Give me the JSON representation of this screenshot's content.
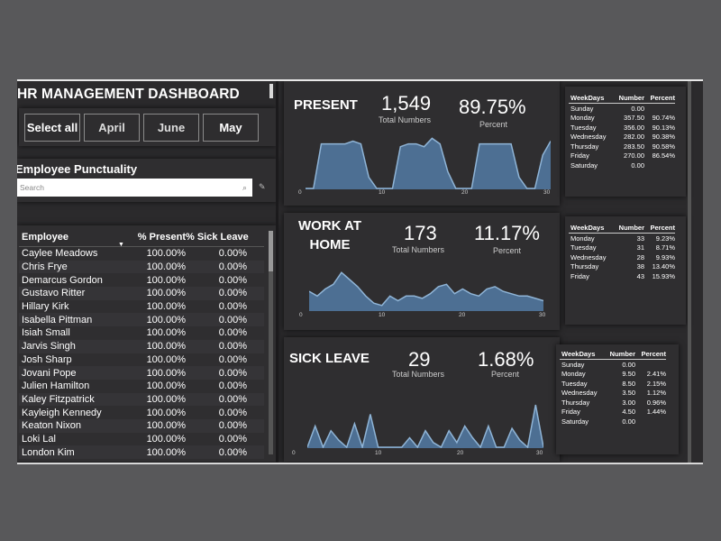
{
  "dashboard": {
    "title": "HR MANAGEMENT DASHBOARD",
    "months": [
      "Select all",
      "April",
      "June",
      "May"
    ],
    "punctuality_title": "Employee Punctuality",
    "search_placeholder": "Search",
    "table": {
      "headers": [
        "Employee",
        "% Present",
        "% Sick Leave"
      ],
      "rows": [
        [
          "Caylee Meadows",
          "100.00%",
          "0.00%"
        ],
        [
          "Chris Frye",
          "100.00%",
          "0.00%"
        ],
        [
          "Demarcus Gordon",
          "100.00%",
          "0.00%"
        ],
        [
          "Gustavo Ritter",
          "100.00%",
          "0.00%"
        ],
        [
          "Hillary Kirk",
          "100.00%",
          "0.00%"
        ],
        [
          "Isabella Pittman",
          "100.00%",
          "0.00%"
        ],
        [
          "Isiah Small",
          "100.00%",
          "0.00%"
        ],
        [
          "Jarvis Singh",
          "100.00%",
          "0.00%"
        ],
        [
          "Josh Sharp",
          "100.00%",
          "0.00%"
        ],
        [
          "Jovani Pope",
          "100.00%",
          "0.00%"
        ],
        [
          "Julien Hamilton",
          "100.00%",
          "0.00%"
        ],
        [
          "Kaley Fitzpatrick",
          "100.00%",
          "0.00%"
        ],
        [
          "Kayleigh Kennedy",
          "100.00%",
          "0.00%"
        ],
        [
          "Keaton Nixon",
          "100.00%",
          "0.00%"
        ],
        [
          "Loki Lal",
          "100.00%",
          "0.00%"
        ],
        [
          "London Kim",
          "100.00%",
          "0.00%"
        ]
      ]
    }
  },
  "sections": {
    "present": {
      "title": "PRESENT",
      "number": "1,549",
      "number_label": "Total Numbers",
      "percent": "89.75%",
      "percent_label": "Percent",
      "axis": [
        "0",
        "10",
        "20",
        "30"
      ],
      "series": [
        0,
        0,
        0.8,
        0.8,
        0.8,
        0.8,
        0.85,
        0.8,
        0.2,
        0,
        0,
        0,
        0.75,
        0.8,
        0.8,
        0.75,
        0.9,
        0.8,
        0.3,
        0,
        0,
        0,
        0.8,
        0.8,
        0.8,
        0.8,
        0.8,
        0.2,
        0,
        0,
        0.6,
        0.85
      ],
      "table": {
        "headers": [
          "WeekDays",
          "Number",
          "Percent"
        ],
        "rows": [
          [
            "Sunday",
            "0.00",
            ""
          ],
          [
            "Monday",
            "357.50",
            "90.74%"
          ],
          [
            "Tuesday",
            "356.00",
            "90.13%"
          ],
          [
            "Wednesday",
            "282.00",
            "90.38%"
          ],
          [
            "Thursday",
            "283.50",
            "90.58%"
          ],
          [
            "Friday",
            "270.00",
            "86.54%"
          ],
          [
            "Saturday",
            "0.00",
            ""
          ]
        ]
      }
    },
    "work_at_home": {
      "title_line1": "WORK AT",
      "title_line2": "HOME",
      "number": "173",
      "number_label": "Total Numbers",
      "percent": "11.17%",
      "percent_label": "Percent",
      "axis": [
        "0",
        "10",
        "20",
        "30"
      ],
      "series": [
        0.4,
        0.3,
        0.45,
        0.55,
        0.8,
        0.65,
        0.5,
        0.3,
        0.15,
        0.1,
        0.3,
        0.2,
        0.3,
        0.3,
        0.25,
        0.35,
        0.5,
        0.55,
        0.35,
        0.45,
        0.35,
        0.3,
        0.45,
        0.5,
        0.4,
        0.35,
        0.3,
        0.3,
        0.25,
        0.2
      ],
      "table": {
        "headers": [
          "WeekDays",
          "Number",
          "Percent"
        ],
        "rows": [
          [
            "Monday",
            "33",
            "9.23%"
          ],
          [
            "Tuesday",
            "31",
            "8.71%"
          ],
          [
            "Wednesday",
            "28",
            "9.93%"
          ],
          [
            "Thursday",
            "38",
            "13.40%"
          ],
          [
            "Friday",
            "43",
            "15.93%"
          ]
        ]
      }
    },
    "sick_leave": {
      "title": "SICK LEAVE",
      "number": "29",
      "number_label": "Total Numbers",
      "percent": "1.68%",
      "percent_label": "Percent",
      "axis": [
        "0",
        "10",
        "20",
        "30"
      ],
      "series": [
        0,
        0.45,
        0,
        0.35,
        0.15,
        0,
        0.5,
        0,
        0.7,
        0,
        0,
        0,
        0,
        0.2,
        0,
        0.35,
        0.1,
        0,
        0.35,
        0.1,
        0.45,
        0.2,
        0,
        0.45,
        0,
        0,
        0.4,
        0.15,
        0,
        0.9,
        0
      ],
      "table": {
        "headers": [
          "WeekDays",
          "Number",
          "Percent"
        ],
        "rows": [
          [
            "Sunday",
            "0.00",
            ""
          ],
          [
            "Monday",
            "9.50",
            "2.41%"
          ],
          [
            "Tuesday",
            "8.50",
            "2.15%"
          ],
          [
            "Wednesday",
            "3.50",
            "1.12%"
          ],
          [
            "Thursday",
            "3.00",
            "0.96%"
          ],
          [
            "Friday",
            "4.50",
            "1.44%"
          ],
          [
            "Saturday",
            "0.00",
            ""
          ]
        ]
      }
    }
  },
  "colors": {
    "area_fill": "#4d6f93",
    "area_stroke": "#8fb4d6",
    "background": "#2b2a2c"
  }
}
